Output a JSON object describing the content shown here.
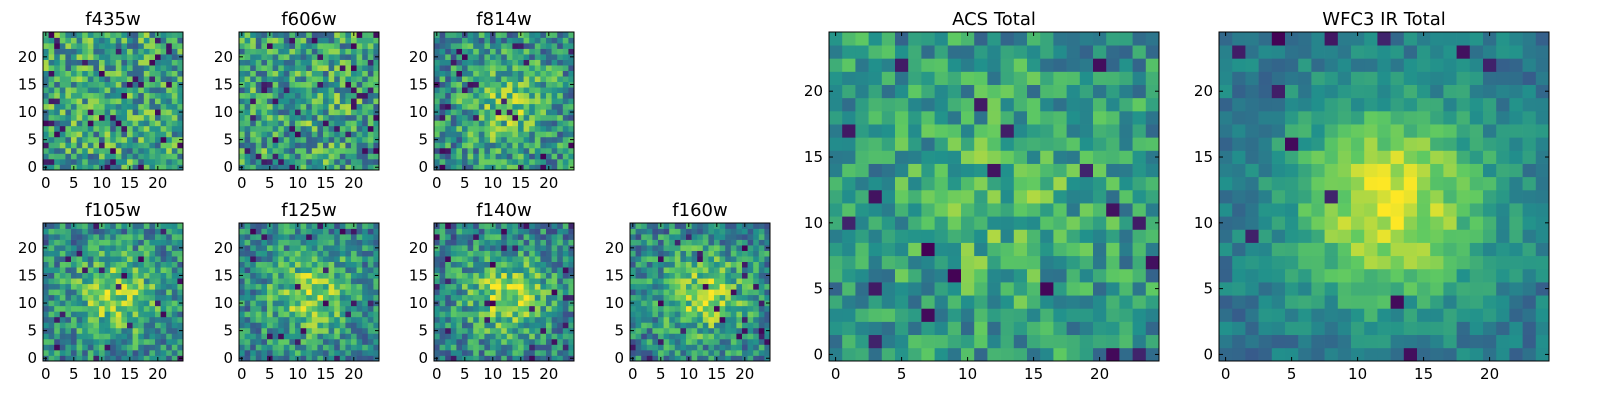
{
  "chart_data": [
    {
      "id": "f435w",
      "type": "heatmap",
      "title": "f435w",
      "grid_size": 25,
      "xlim": [
        -0.5,
        24.5
      ],
      "ylim": [
        -0.5,
        24.5
      ],
      "xticks": [
        0,
        5,
        10,
        15,
        20
      ],
      "yticks": [
        0,
        5,
        10,
        15,
        20
      ],
      "colormap": "viridis",
      "center_brightness": 0.0,
      "noise": 0.3,
      "outlier_rate": 0.06,
      "seed": 11
    },
    {
      "id": "f606w",
      "type": "heatmap",
      "title": "f606w",
      "grid_size": 25,
      "xlim": [
        -0.5,
        24.5
      ],
      "ylim": [
        -0.5,
        24.5
      ],
      "xticks": [
        0,
        5,
        10,
        15,
        20
      ],
      "yticks": [
        0,
        5,
        10,
        15,
        20
      ],
      "colormap": "viridis",
      "center_brightness": 0.05,
      "noise": 0.3,
      "outlier_rate": 0.06,
      "seed": 23
    },
    {
      "id": "f814w",
      "type": "heatmap",
      "title": "f814w",
      "grid_size": 25,
      "xlim": [
        -0.5,
        24.5
      ],
      "ylim": [
        -0.5,
        24.5
      ],
      "xticks": [
        0,
        5,
        10,
        15,
        20
      ],
      "yticks": [
        0,
        5,
        10,
        15,
        20
      ],
      "colormap": "viridis",
      "center_brightness": 0.25,
      "noise": 0.28,
      "outlier_rate": 0.05,
      "seed": 37
    },
    {
      "id": "f105w",
      "type": "heatmap",
      "title": "f105w",
      "grid_size": 25,
      "xlim": [
        -0.5,
        24.5
      ],
      "ylim": [
        -0.5,
        24.5
      ],
      "xticks": [
        0,
        5,
        10,
        15,
        20
      ],
      "yticks": [
        0,
        5,
        10,
        15,
        20
      ],
      "colormap": "viridis",
      "center_brightness": 0.35,
      "noise": 0.25,
      "outlier_rate": 0.04,
      "seed": 41
    },
    {
      "id": "f125w",
      "type": "heatmap",
      "title": "f125w",
      "grid_size": 25,
      "xlim": [
        -0.5,
        24.5
      ],
      "ylim": [
        -0.5,
        24.5
      ],
      "xticks": [
        0,
        5,
        10,
        15,
        20
      ],
      "yticks": [
        0,
        5,
        10,
        15,
        20
      ],
      "colormap": "viridis",
      "center_brightness": 0.35,
      "noise": 0.25,
      "outlier_rate": 0.04,
      "seed": 53
    },
    {
      "id": "f140w",
      "type": "heatmap",
      "title": "f140w",
      "grid_size": 25,
      "xlim": [
        -0.5,
        24.5
      ],
      "ylim": [
        -0.5,
        24.5
      ],
      "xticks": [
        0,
        5,
        10,
        15,
        20
      ],
      "yticks": [
        0,
        5,
        10,
        15,
        20
      ],
      "colormap": "viridis",
      "center_brightness": 0.4,
      "noise": 0.25,
      "outlier_rate": 0.04,
      "seed": 67
    },
    {
      "id": "f160w",
      "type": "heatmap",
      "title": "f160w",
      "grid_size": 25,
      "xlim": [
        -0.5,
        24.5
      ],
      "ylim": [
        -0.5,
        24.5
      ],
      "xticks": [
        0,
        5,
        10,
        15,
        20
      ],
      "yticks": [
        0,
        5,
        10,
        15,
        20
      ],
      "colormap": "viridis",
      "center_brightness": 0.35,
      "noise": 0.25,
      "outlier_rate": 0.04,
      "seed": 79
    },
    {
      "id": "acs-total",
      "type": "heatmap",
      "title": "ACS Total",
      "grid_size": 25,
      "xlim": [
        -0.5,
        24.5
      ],
      "ylim": [
        -0.5,
        24.5
      ],
      "xticks": [
        0,
        5,
        10,
        15,
        20
      ],
      "yticks": [
        0,
        5,
        10,
        15,
        20
      ],
      "colormap": "viridis",
      "center_brightness": 0.15,
      "noise": 0.22,
      "outlier_rate": 0.035,
      "seed": 83
    },
    {
      "id": "wfc3-ir-total",
      "type": "heatmap",
      "title": "WFC3 IR Total",
      "grid_size": 25,
      "xlim": [
        -0.5,
        24.5
      ],
      "ylim": [
        -0.5,
        24.5
      ],
      "xticks": [
        0,
        5,
        10,
        15,
        20
      ],
      "yticks": [
        0,
        5,
        10,
        15,
        20
      ],
      "colormap": "viridis",
      "center_brightness": 0.55,
      "noise": 0.12,
      "outlier_rate": 0.015,
      "seed": 97
    }
  ],
  "colormap_stops": [
    "#440154",
    "#3b528b",
    "#21918c",
    "#5ec962",
    "#fde725"
  ]
}
